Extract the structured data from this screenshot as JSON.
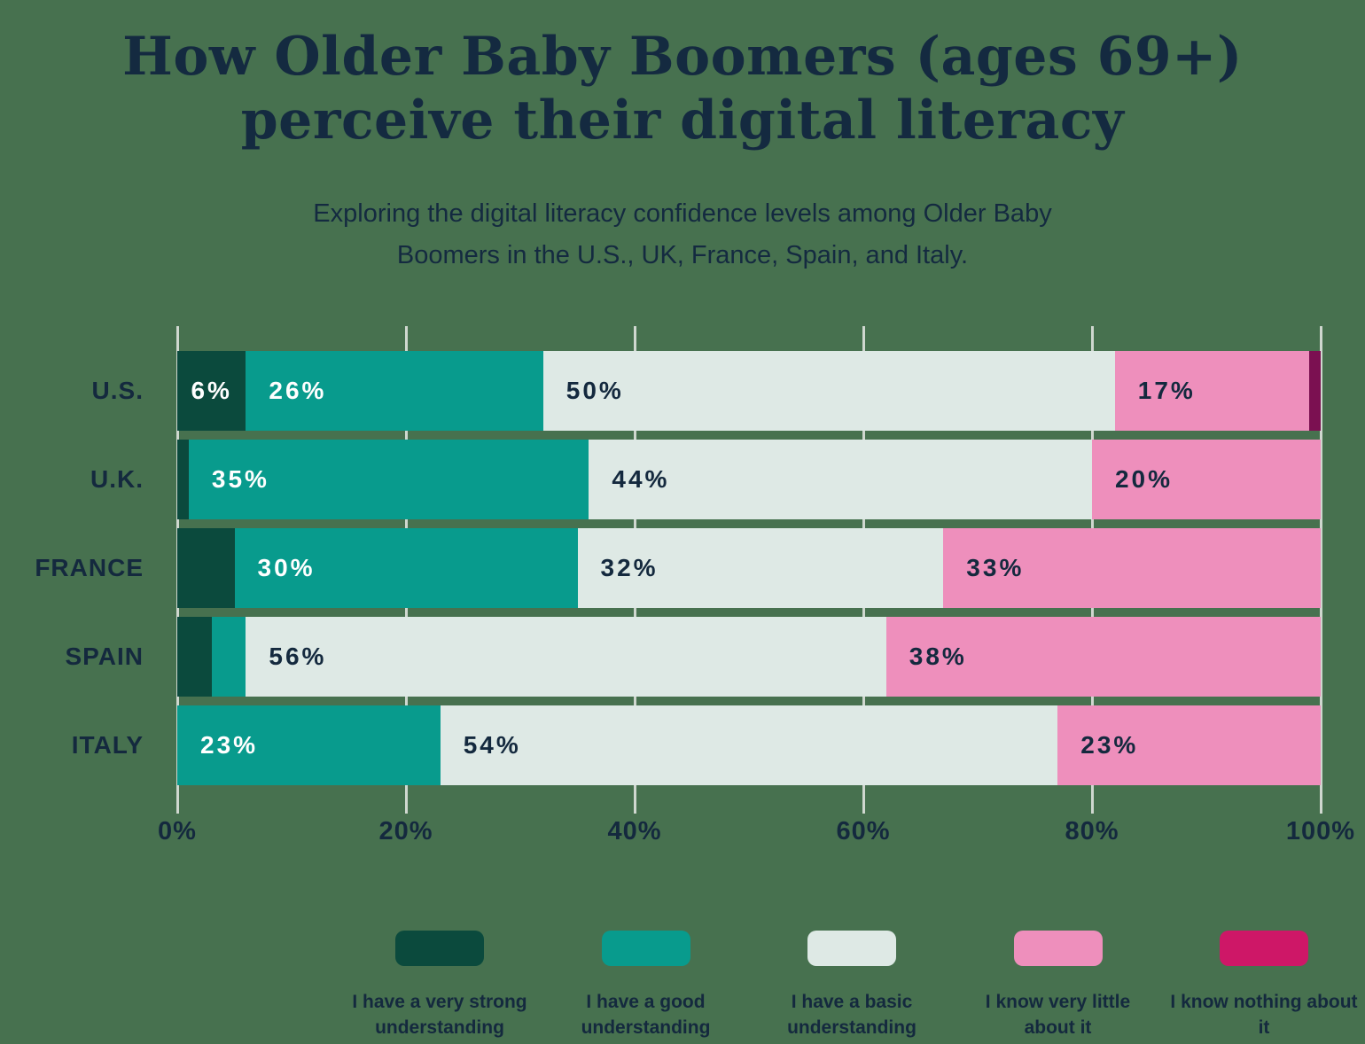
{
  "page": {
    "background_color": "#47714F",
    "text_color": "#14293E",
    "gridline_color": "#CFD7CF"
  },
  "header": {
    "title": "How Older Baby Boomers (ages 69+)\nperceive their digital literacy",
    "subtitle": "Exploring the digital literacy confidence levels among Older Baby\nBoomers in the U.S., UK, France, Spain, and Italy."
  },
  "chart_data": {
    "type": "bar",
    "stacked": true,
    "orientation": "horizontal",
    "title": "How Older Baby Boomers (ages 69+) perceive their digital literacy",
    "categories": [
      "U.S.",
      "U.K.",
      "FRANCE",
      "SPAIN",
      "ITALY"
    ],
    "series": [
      {
        "name": "I have a very strong understanding",
        "color": "#0B4A3D",
        "legend_color": "#0B4A3D",
        "label_color": "#FFFFFF",
        "values": [
          6,
          1,
          5,
          3,
          0
        ]
      },
      {
        "name": "I have a good understanding",
        "color": "#089B8D",
        "legend_color": "#089B8D",
        "label_color": "#FFFFFF",
        "values": [
          26,
          35,
          30,
          3,
          23
        ]
      },
      {
        "name": "I have a basic understanding",
        "color": "#DEE9E5",
        "legend_color": "#DEE9E5",
        "label_color": "#14293E",
        "values": [
          50,
          44,
          32,
          56,
          54
        ]
      },
      {
        "name": "I know very little about it",
        "color": "#EE8FBC",
        "legend_color": "#EE8FBC",
        "label_color": "#14293E",
        "values": [
          17,
          20,
          33,
          38,
          23
        ]
      },
      {
        "name": "I know nothing about it",
        "color": "#7B1051",
        "legend_color": "#CE1767",
        "label_color": "#FFFFFF",
        "values": [
          1,
          0,
          0,
          0,
          0
        ]
      }
    ],
    "min_label_value": 6,
    "value_label_suffix": "%",
    "x_ticks": [
      "0%",
      "20%",
      "40%",
      "60%",
      "80%",
      "100%"
    ],
    "xlim": [
      0,
      100
    ],
    "grid": true,
    "legend_position": "bottom"
  }
}
